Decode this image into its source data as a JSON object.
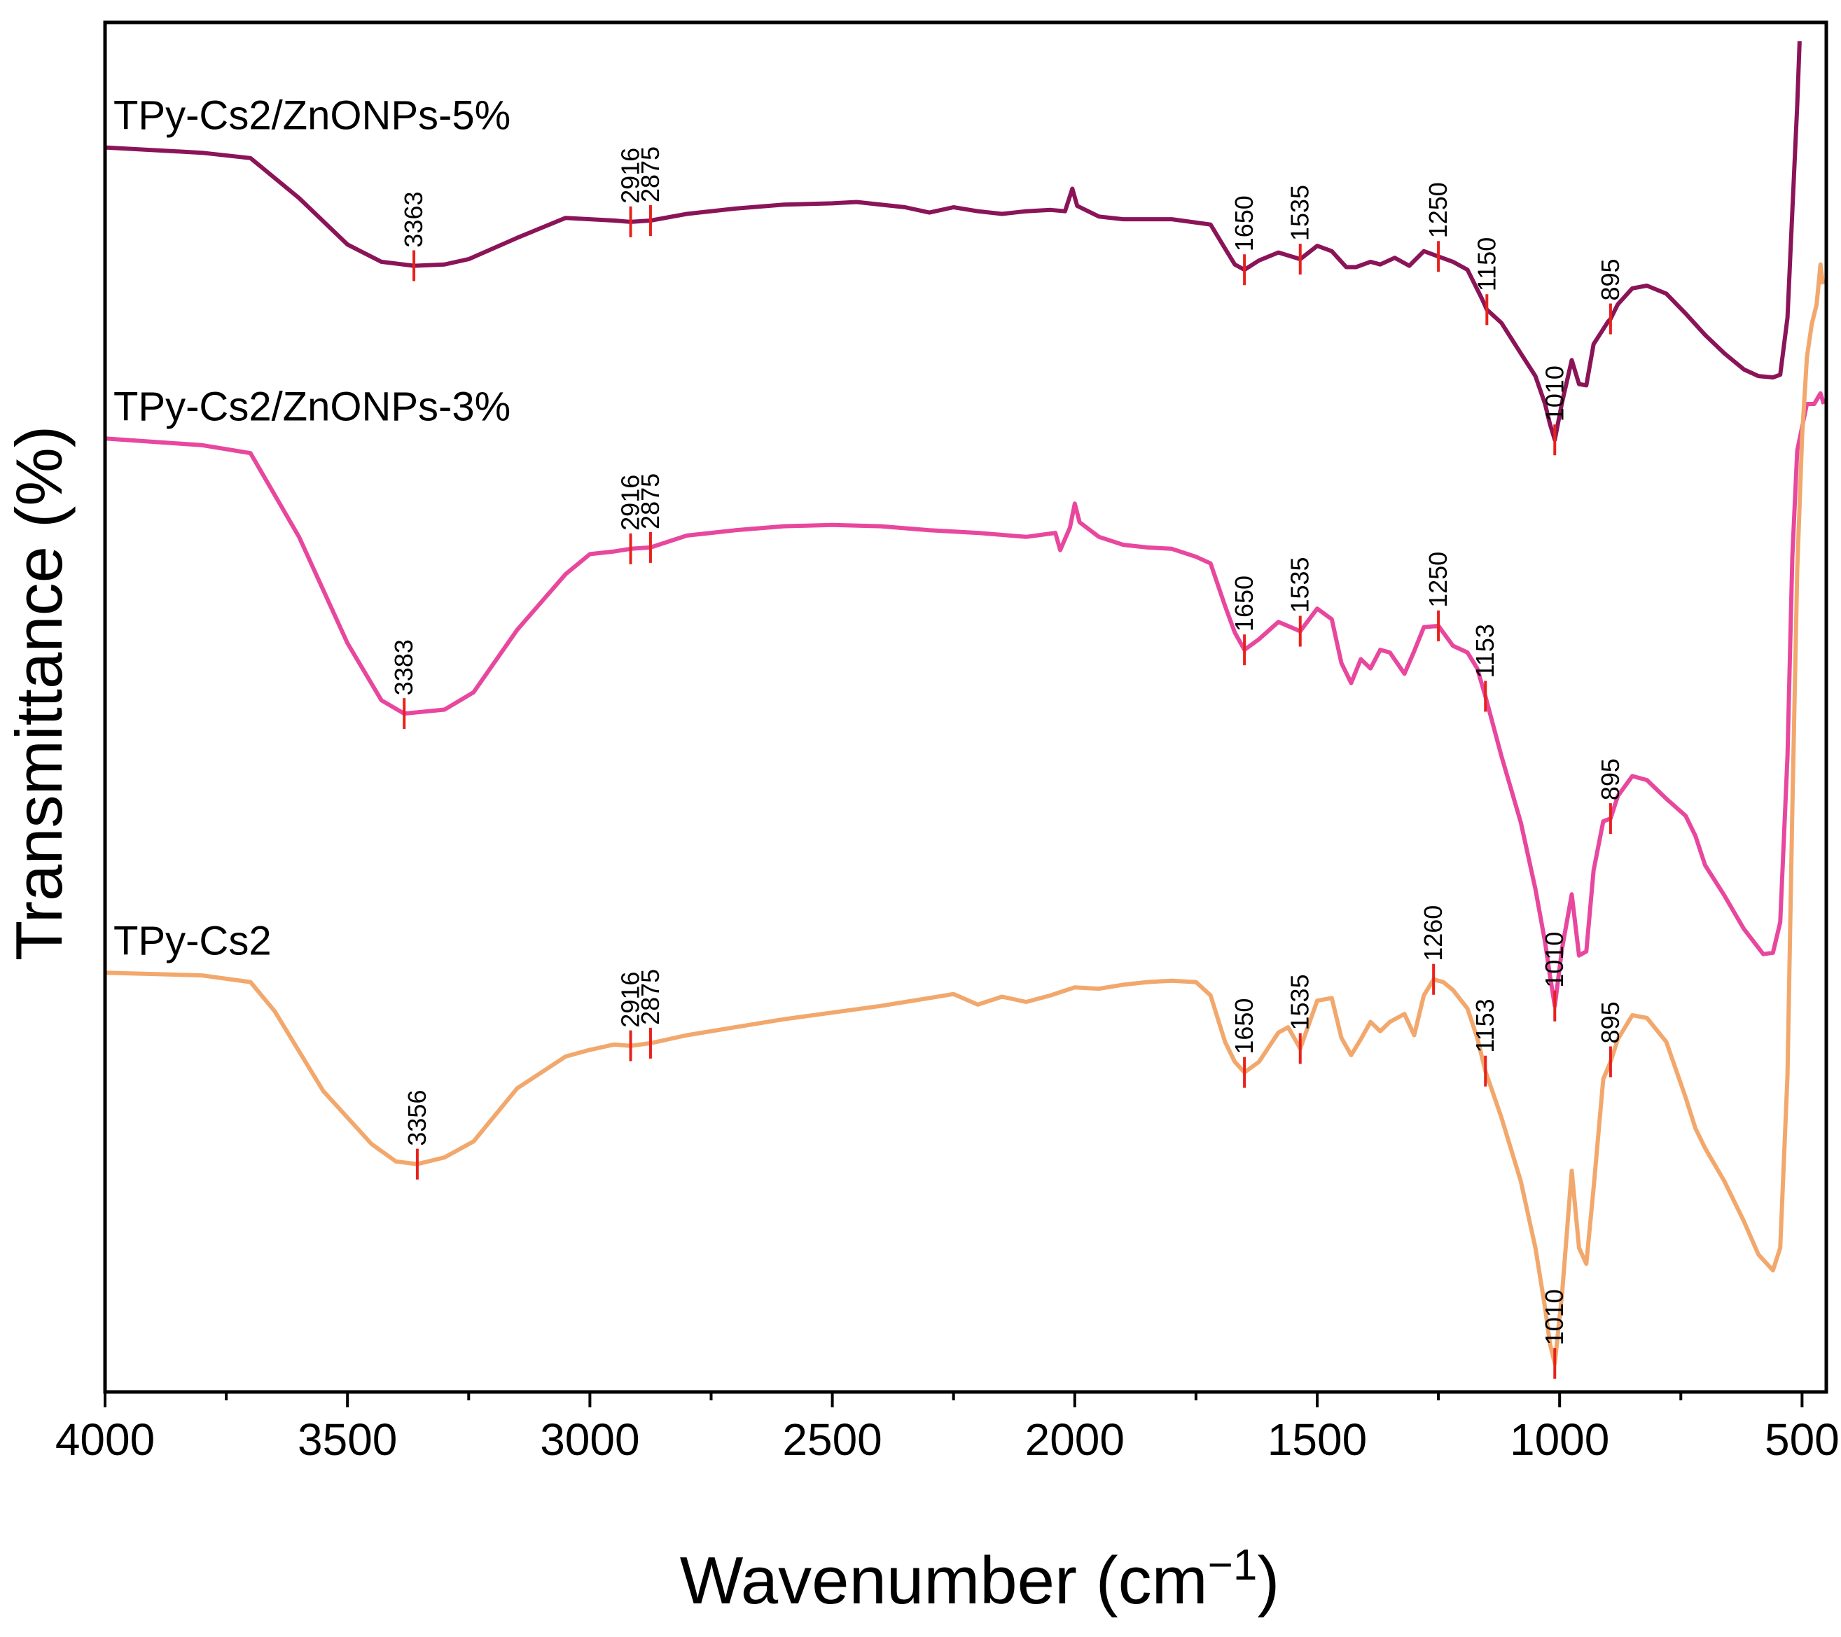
{
  "chart_data": {
    "type": "line",
    "xlabel": "Wavenumber (cm−1)",
    "xlabel_main": "Wavenumber (cm",
    "xlabel_sup": "−1",
    "xlabel_close": ")",
    "ylabel": "Transmittance (%)",
    "xlim": [
      4000,
      450
    ],
    "xticks": [
      "4000",
      "3500",
      "3000",
      "2500",
      "2000",
      "1500",
      "1000",
      "500"
    ],
    "ylim": [
      0,
      100
    ],
    "grid": false,
    "y_ticks_shown": false,
    "series": [
      {
        "name": "TPy-Cs2/ZnONPs-5%",
        "color": "#8B1458",
        "points": [
          [
            4000,
            91.8
          ],
          [
            3800,
            91.4
          ],
          [
            3700,
            91.0
          ],
          [
            3600,
            88.0
          ],
          [
            3500,
            84.5
          ],
          [
            3430,
            83.2
          ],
          [
            3363,
            82.9
          ],
          [
            3300,
            83.0
          ],
          [
            3250,
            83.4
          ],
          [
            3150,
            85.0
          ],
          [
            3050,
            86.5
          ],
          [
            2950,
            86.3
          ],
          [
            2916,
            86.2
          ],
          [
            2875,
            86.3
          ],
          [
            2800,
            86.8
          ],
          [
            2700,
            87.2
          ],
          [
            2600,
            87.5
          ],
          [
            2500,
            87.6
          ],
          [
            2450,
            87.7
          ],
          [
            2350,
            87.3
          ],
          [
            2300,
            86.9
          ],
          [
            2250,
            87.3
          ],
          [
            2200,
            87.0
          ],
          [
            2150,
            86.8
          ],
          [
            2100,
            87.0
          ],
          [
            2050,
            87.1
          ],
          [
            2020,
            87.0
          ],
          [
            2005,
            88.7
          ],
          [
            1995,
            87.4
          ],
          [
            1950,
            86.6
          ],
          [
            1900,
            86.4
          ],
          [
            1800,
            86.4
          ],
          [
            1720,
            86.0
          ],
          [
            1690,
            84.2
          ],
          [
            1670,
            83.0
          ],
          [
            1650,
            82.6
          ],
          [
            1620,
            83.3
          ],
          [
            1580,
            83.9
          ],
          [
            1535,
            83.4
          ],
          [
            1500,
            84.4
          ],
          [
            1470,
            84.0
          ],
          [
            1440,
            82.8
          ],
          [
            1420,
            82.8
          ],
          [
            1390,
            83.2
          ],
          [
            1370,
            83.0
          ],
          [
            1340,
            83.5
          ],
          [
            1310,
            82.9
          ],
          [
            1280,
            84.0
          ],
          [
            1250,
            83.6
          ],
          [
            1220,
            83.2
          ],
          [
            1190,
            82.6
          ],
          [
            1160,
            80.4
          ],
          [
            1150,
            79.6
          ],
          [
            1120,
            78.6
          ],
          [
            1080,
            76.3
          ],
          [
            1050,
            74.6
          ],
          [
            1030,
            72.5
          ],
          [
            1020,
            71.0
          ],
          [
            1010,
            69.8
          ],
          [
            995,
            72.6
          ],
          [
            975,
            75.8
          ],
          [
            960,
            74.0
          ],
          [
            945,
            73.9
          ],
          [
            930,
            77.0
          ],
          [
            900,
            78.7
          ],
          [
            895,
            78.9
          ],
          [
            880,
            80.0
          ],
          [
            850,
            81.2
          ],
          [
            820,
            81.4
          ],
          [
            780,
            80.8
          ],
          [
            740,
            79.3
          ],
          [
            700,
            77.7
          ],
          [
            660,
            76.3
          ],
          [
            620,
            75.1
          ],
          [
            590,
            74.6
          ],
          [
            560,
            74.5
          ],
          [
            545,
            74.7
          ],
          [
            530,
            79.0
          ],
          [
            520,
            87.0
          ],
          [
            510,
            95.0
          ],
          [
            505,
            99.8
          ]
        ]
      },
      {
        "name": "TPy-Cs2/ZnONPs-3%",
        "color": "#E8479E",
        "points": [
          [
            4000,
            69.9
          ],
          [
            3800,
            69.4
          ],
          [
            3700,
            68.8
          ],
          [
            3600,
            62.5
          ],
          [
            3500,
            54.5
          ],
          [
            3430,
            50.2
          ],
          [
            3383,
            49.2
          ],
          [
            3300,
            49.5
          ],
          [
            3240,
            50.8
          ],
          [
            3150,
            55.5
          ],
          [
            3050,
            59.7
          ],
          [
            3000,
            61.2
          ],
          [
            2950,
            61.4
          ],
          [
            2916,
            61.6
          ],
          [
            2875,
            61.7
          ],
          [
            2800,
            62.6
          ],
          [
            2700,
            63.0
          ],
          [
            2600,
            63.3
          ],
          [
            2500,
            63.4
          ],
          [
            2400,
            63.3
          ],
          [
            2300,
            63.0
          ],
          [
            2200,
            62.8
          ],
          [
            2100,
            62.5
          ],
          [
            2040,
            62.8
          ],
          [
            2030,
            61.5
          ],
          [
            2010,
            63.2
          ],
          [
            2000,
            65.0
          ],
          [
            1990,
            63.6
          ],
          [
            1950,
            62.5
          ],
          [
            1900,
            61.9
          ],
          [
            1850,
            61.7
          ],
          [
            1800,
            61.6
          ],
          [
            1750,
            61.0
          ],
          [
            1720,
            60.5
          ],
          [
            1690,
            57.3
          ],
          [
            1670,
            55.3
          ],
          [
            1650,
            54.0
          ],
          [
            1620,
            54.8
          ],
          [
            1580,
            56.1
          ],
          [
            1535,
            55.4
          ],
          [
            1500,
            57.1
          ],
          [
            1470,
            56.3
          ],
          [
            1450,
            53.0
          ],
          [
            1430,
            51.5
          ],
          [
            1410,
            53.3
          ],
          [
            1390,
            52.6
          ],
          [
            1370,
            54.0
          ],
          [
            1350,
            53.8
          ],
          [
            1320,
            52.2
          ],
          [
            1300,
            53.9
          ],
          [
            1280,
            55.7
          ],
          [
            1250,
            55.8
          ],
          [
            1220,
            54.3
          ],
          [
            1190,
            53.8
          ],
          [
            1170,
            52.6
          ],
          [
            1153,
            50.5
          ],
          [
            1120,
            46.0
          ],
          [
            1080,
            41.0
          ],
          [
            1050,
            36.0
          ],
          [
            1030,
            32.0
          ],
          [
            1020,
            29.5
          ],
          [
            1010,
            27.2
          ],
          [
            995,
            31.5
          ],
          [
            975,
            35.6
          ],
          [
            960,
            31.0
          ],
          [
            945,
            31.3
          ],
          [
            930,
            37.4
          ],
          [
            910,
            41.1
          ],
          [
            895,
            41.3
          ],
          [
            880,
            43.0
          ],
          [
            850,
            44.5
          ],
          [
            820,
            44.2
          ],
          [
            780,
            42.8
          ],
          [
            740,
            41.5
          ],
          [
            720,
            40.0
          ],
          [
            700,
            37.8
          ],
          [
            660,
            35.5
          ],
          [
            620,
            33.0
          ],
          [
            580,
            31.1
          ],
          [
            560,
            31.2
          ],
          [
            545,
            33.5
          ],
          [
            530,
            46.0
          ],
          [
            520,
            61.0
          ],
          [
            510,
            69.0
          ],
          [
            490,
            72.5
          ],
          [
            475,
            72.5
          ],
          [
            462,
            73.3
          ],
          [
            455,
            72.5
          ]
        ]
      },
      {
        "name": "TPy-Cs2",
        "color": "#F2A86C",
        "points": [
          [
            4000,
            29.7
          ],
          [
            3800,
            29.5
          ],
          [
            3700,
            29.0
          ],
          [
            3650,
            26.8
          ],
          [
            3550,
            20.8
          ],
          [
            3450,
            16.8
          ],
          [
            3400,
            15.5
          ],
          [
            3356,
            15.3
          ],
          [
            3300,
            15.8
          ],
          [
            3240,
            17.0
          ],
          [
            3150,
            21.0
          ],
          [
            3050,
            23.4
          ],
          [
            3000,
            23.9
          ],
          [
            2950,
            24.3
          ],
          [
            2916,
            24.2
          ],
          [
            2875,
            24.4
          ],
          [
            2800,
            25.0
          ],
          [
            2700,
            25.6
          ],
          [
            2600,
            26.2
          ],
          [
            2500,
            26.7
          ],
          [
            2400,
            27.2
          ],
          [
            2300,
            27.8
          ],
          [
            2250,
            28.1
          ],
          [
            2200,
            27.3
          ],
          [
            2150,
            27.9
          ],
          [
            2100,
            27.5
          ],
          [
            2050,
            28.0
          ],
          [
            2000,
            28.6
          ],
          [
            1950,
            28.5
          ],
          [
            1900,
            28.8
          ],
          [
            1850,
            29.0
          ],
          [
            1800,
            29.1
          ],
          [
            1750,
            29.0
          ],
          [
            1720,
            28.0
          ],
          [
            1690,
            24.5
          ],
          [
            1670,
            23.0
          ],
          [
            1650,
            22.2
          ],
          [
            1620,
            23.0
          ],
          [
            1580,
            25.2
          ],
          [
            1560,
            25.6
          ],
          [
            1535,
            24.0
          ],
          [
            1500,
            27.6
          ],
          [
            1470,
            27.8
          ],
          [
            1450,
            24.8
          ],
          [
            1430,
            23.5
          ],
          [
            1410,
            24.7
          ],
          [
            1390,
            26.0
          ],
          [
            1370,
            25.3
          ],
          [
            1350,
            26.0
          ],
          [
            1320,
            26.6
          ],
          [
            1300,
            25.0
          ],
          [
            1280,
            28.0
          ],
          [
            1260,
            29.2
          ],
          [
            1240,
            29.0
          ],
          [
            1220,
            28.4
          ],
          [
            1190,
            27.0
          ],
          [
            1170,
            24.8
          ],
          [
            1153,
            22.3
          ],
          [
            1120,
            18.8
          ],
          [
            1080,
            14.0
          ],
          [
            1050,
            9.0
          ],
          [
            1030,
            4.5
          ],
          [
            1020,
            1.8
          ],
          [
            1010,
            0.3
          ],
          [
            995,
            5.5
          ],
          [
            975,
            14.8
          ],
          [
            960,
            9.0
          ],
          [
            945,
            7.8
          ],
          [
            930,
            13.5
          ],
          [
            910,
            21.7
          ],
          [
            895,
            23.0
          ],
          [
            880,
            24.7
          ],
          [
            850,
            26.5
          ],
          [
            820,
            26.3
          ],
          [
            780,
            24.5
          ],
          [
            740,
            20.3
          ],
          [
            720,
            18.0
          ],
          [
            700,
            16.5
          ],
          [
            660,
            14.0
          ],
          [
            620,
            11.0
          ],
          [
            590,
            8.5
          ],
          [
            560,
            7.3
          ],
          [
            545,
            9.0
          ],
          [
            530,
            22.0
          ],
          [
            520,
            42.0
          ],
          [
            510,
            60.0
          ],
          [
            500,
            70.0
          ],
          [
            490,
            76.0
          ],
          [
            480,
            78.5
          ],
          [
            470,
            80.0
          ],
          [
            462,
            83.0
          ],
          [
            457,
            81.5
          ]
        ]
      }
    ],
    "peaks": [
      {
        "series": 0,
        "labels": [
          "3363",
          "2916",
          "2875",
          "1650",
          "1535",
          "1250",
          "1150",
          "1010",
          "895"
        ],
        "x": [
          3363,
          2916,
          2875,
          1650,
          1535,
          1250,
          1150,
          1010,
          895
        ]
      },
      {
        "series": 1,
        "labels": [
          "3383",
          "2916",
          "2875",
          "1650",
          "1535",
          "1250",
          "1153",
          "1010",
          "895"
        ],
        "x": [
          3383,
          2916,
          2875,
          1650,
          1535,
          1250,
          1153,
          1010,
          895
        ]
      },
      {
        "series": 2,
        "labels": [
          "3356",
          "2916",
          "2875",
          "1650",
          "1535",
          "1260",
          "1153",
          "1010",
          "895"
        ],
        "x": [
          3356,
          2916,
          2875,
          1650,
          1535,
          1260,
          1153,
          1010,
          895
        ]
      }
    ],
    "marker_color": "#E8211C"
  }
}
